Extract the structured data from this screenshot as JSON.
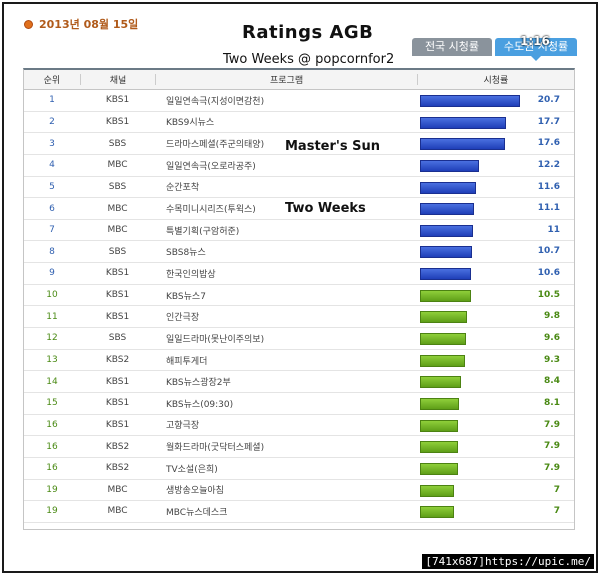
{
  "date": "2013년 08월 15일",
  "title": "Ratings AGB",
  "subtitle": "Two Weeks @ popcornfor2",
  "stamp": "1:16",
  "tabs": [
    {
      "label": "전국 시청률",
      "active": false
    },
    {
      "label": "수도권 시청률",
      "active": true
    }
  ],
  "annotations": {
    "masters_sun": "Master's Sun",
    "two_weeks": "Two Weeks"
  },
  "table": {
    "headers": {
      "rank": "순위",
      "channel": "채널",
      "program": "프로그램",
      "rating": "시청률"
    },
    "max_rating": 20.7,
    "rows": [
      {
        "rank": "1",
        "channel": "KBS1",
        "program": "일일연속극(지성이면감천)",
        "rating": 20.7,
        "rating_text": "20.7",
        "color": "blue"
      },
      {
        "rank": "2",
        "channel": "KBS1",
        "program": "KBS9시뉴스",
        "rating": 17.7,
        "rating_text": "17.7",
        "color": "blue"
      },
      {
        "rank": "3",
        "channel": "SBS",
        "program": "드라마스페셜(주군의태양)",
        "rating": 17.6,
        "rating_text": "17.6",
        "color": "blue"
      },
      {
        "rank": "4",
        "channel": "MBC",
        "program": "일일연속극(오로라공주)",
        "rating": 12.2,
        "rating_text": "12.2",
        "color": "blue"
      },
      {
        "rank": "5",
        "channel": "SBS",
        "program": "순간포착",
        "rating": 11.6,
        "rating_text": "11.6",
        "color": "blue"
      },
      {
        "rank": "6",
        "channel": "MBC",
        "program": "수목미니시리즈(투윅스)",
        "rating": 11.1,
        "rating_text": "11.1",
        "color": "blue"
      },
      {
        "rank": "7",
        "channel": "MBC",
        "program": "특별기획(구암허준)",
        "rating": 11,
        "rating_text": "11",
        "color": "blue"
      },
      {
        "rank": "8",
        "channel": "SBS",
        "program": "SBS8뉴스",
        "rating": 10.7,
        "rating_text": "10.7",
        "color": "blue"
      },
      {
        "rank": "9",
        "channel": "KBS1",
        "program": "한국인의밥상",
        "rating": 10.6,
        "rating_text": "10.6",
        "color": "blue"
      },
      {
        "rank": "10",
        "channel": "KBS1",
        "program": "KBS뉴스7",
        "rating": 10.5,
        "rating_text": "10.5",
        "color": "green"
      },
      {
        "rank": "11",
        "channel": "KBS1",
        "program": "인간극장",
        "rating": 9.8,
        "rating_text": "9.8",
        "color": "green"
      },
      {
        "rank": "12",
        "channel": "SBS",
        "program": "일일드라마(못난이주의보)",
        "rating": 9.6,
        "rating_text": "9.6",
        "color": "green"
      },
      {
        "rank": "13",
        "channel": "KBS2",
        "program": "해피투게더",
        "rating": 9.3,
        "rating_text": "9.3",
        "color": "green"
      },
      {
        "rank": "14",
        "channel": "KBS1",
        "program": "KBS뉴스광장2부",
        "rating": 8.4,
        "rating_text": "8.4",
        "color": "green"
      },
      {
        "rank": "15",
        "channel": "KBS1",
        "program": "KBS뉴스(09:30)",
        "rating": 8.1,
        "rating_text": "8.1",
        "color": "green"
      },
      {
        "rank": "16",
        "channel": "KBS1",
        "program": "고향극장",
        "rating": 7.9,
        "rating_text": "7.9",
        "color": "green"
      },
      {
        "rank": "16",
        "channel": "KBS2",
        "program": "월화드라마(굿닥터스페셜)",
        "rating": 7.9,
        "rating_text": "7.9",
        "color": "green"
      },
      {
        "rank": "16",
        "channel": "KBS2",
        "program": "TV소설(은희)",
        "rating": 7.9,
        "rating_text": "7.9",
        "color": "green"
      },
      {
        "rank": "19",
        "channel": "MBC",
        "program": "생방송오늘아침",
        "rating": 7,
        "rating_text": "7",
        "color": "green"
      },
      {
        "rank": "19",
        "channel": "MBC",
        "program": "MBC뉴스데스크",
        "rating": 7,
        "rating_text": "7",
        "color": "green"
      }
    ]
  },
  "watermark": "[741x687]https://upic.me/"
}
